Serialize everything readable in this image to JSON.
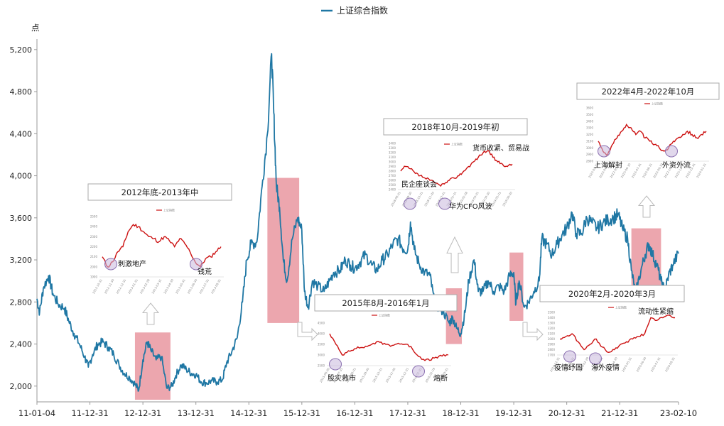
{
  "chart_data": {
    "type": "line",
    "legend": {
      "label": "上证综合指数",
      "color": "#1f77a4",
      "position": "top-center"
    },
    "ylabel": "点",
    "ylim": [
      1850,
      5300
    ],
    "yticks": [
      "2,000",
      "2,400",
      "2,800",
      "3,200",
      "3,600",
      "4,000",
      "4,400",
      "4,800",
      "5,200"
    ],
    "ytick_values": [
      2000,
      2400,
      2800,
      3200,
      3600,
      4000,
      4400,
      4800,
      5200
    ],
    "xticks": [
      "11-01-04",
      "11-12-31",
      "12-12-31",
      "13-12-31",
      "14-12-31",
      "15-12-31",
      "16-12-31",
      "17-12-31",
      "18-12-31",
      "19-12-31",
      "20-12-31",
      "21-12-31",
      "23-02-10"
    ],
    "xtick_years": [
      2011.0,
      2012.0,
      2013.0,
      2014.0,
      2015.0,
      2016.0,
      2017.0,
      2018.0,
      2019.0,
      2020.0,
      2021.0,
      2022.0,
      2023.11
    ],
    "xlim": [
      2011.0,
      2023.11
    ],
    "series": [
      {
        "name": "上证综合指数",
        "color": "#1f77a4",
        "points": [
          [
            2011.0,
            2830
          ],
          [
            2011.05,
            2700
          ],
          [
            2011.12,
            2930
          ],
          [
            2011.22,
            3050
          ],
          [
            2011.3,
            2880
          ],
          [
            2011.4,
            2780
          ],
          [
            2011.52,
            2740
          ],
          [
            2011.6,
            2620
          ],
          [
            2011.7,
            2500
          ],
          [
            2011.8,
            2400
          ],
          [
            2011.9,
            2280
          ],
          [
            2011.97,
            2180
          ],
          [
            2012.05,
            2300
          ],
          [
            2012.15,
            2400
          ],
          [
            2012.25,
            2420
          ],
          [
            2012.35,
            2370
          ],
          [
            2012.45,
            2300
          ],
          [
            2012.55,
            2200
          ],
          [
            2012.65,
            2120
          ],
          [
            2012.75,
            2080
          ],
          [
            2012.85,
            2020
          ],
          [
            2012.92,
            1960
          ],
          [
            2013.0,
            2250
          ],
          [
            2013.08,
            2420
          ],
          [
            2013.15,
            2340
          ],
          [
            2013.25,
            2250
          ],
          [
            2013.35,
            2280
          ],
          [
            2013.45,
            1980
          ],
          [
            2013.55,
            2000
          ],
          [
            2013.62,
            2100
          ],
          [
            2013.72,
            2200
          ],
          [
            2013.82,
            2160
          ],
          [
            2013.92,
            2120
          ],
          [
            2014.0,
            2110
          ],
          [
            2014.1,
            2040
          ],
          [
            2014.2,
            2030
          ],
          [
            2014.3,
            2050
          ],
          [
            2014.4,
            2040
          ],
          [
            2014.5,
            2060
          ],
          [
            2014.58,
            2220
          ],
          [
            2014.68,
            2330
          ],
          [
            2014.78,
            2460
          ],
          [
            2014.88,
            2800
          ],
          [
            2014.96,
            3200
          ],
          [
            2015.04,
            3350
          ],
          [
            2015.15,
            3370
          ],
          [
            2015.25,
            3900
          ],
          [
            2015.35,
            4400
          ],
          [
            2015.43,
            5160
          ],
          [
            2015.47,
            4600
          ],
          [
            2015.52,
            3900
          ],
          [
            2015.58,
            3700
          ],
          [
            2015.65,
            3200
          ],
          [
            2015.72,
            3000
          ],
          [
            2015.82,
            3400
          ],
          [
            2015.92,
            3600
          ],
          [
            2016.0,
            3480
          ],
          [
            2016.05,
            2900
          ],
          [
            2016.12,
            2750
          ],
          [
            2016.2,
            3000
          ],
          [
            2016.3,
            2950
          ],
          [
            2016.42,
            2900
          ],
          [
            2016.52,
            3000
          ],
          [
            2016.6,
            3080
          ],
          [
            2016.72,
            3100
          ],
          [
            2016.82,
            3200
          ],
          [
            2016.92,
            3150
          ],
          [
            2017.0,
            3120
          ],
          [
            2017.1,
            3180
          ],
          [
            2017.2,
            3250
          ],
          [
            2017.32,
            3150
          ],
          [
            2017.42,
            3100
          ],
          [
            2017.52,
            3200
          ],
          [
            2017.62,
            3250
          ],
          [
            2017.72,
            3350
          ],
          [
            2017.82,
            3400
          ],
          [
            2017.92,
            3300
          ],
          [
            2018.0,
            3300
          ],
          [
            2018.05,
            3560
          ],
          [
            2018.12,
            3300
          ],
          [
            2018.22,
            3150
          ],
          [
            2018.32,
            3080
          ],
          [
            2018.42,
            3050
          ],
          [
            2018.5,
            2800
          ],
          [
            2018.58,
            2750
          ],
          [
            2018.68,
            2700
          ],
          [
            2018.78,
            2600
          ],
          [
            2018.85,
            2650
          ],
          [
            2018.92,
            2550
          ],
          [
            2019.0,
            2500
          ],
          [
            2019.08,
            2700
          ],
          [
            2019.15,
            3000
          ],
          [
            2019.25,
            3200
          ],
          [
            2019.33,
            2900
          ],
          [
            2019.42,
            2900
          ],
          [
            2019.52,
            3000
          ],
          [
            2019.62,
            2900
          ],
          [
            2019.72,
            2950
          ],
          [
            2019.82,
            2900
          ],
          [
            2019.92,
            3050
          ],
          [
            2020.0,
            3080
          ],
          [
            2020.04,
            2780
          ],
          [
            2020.1,
            3000
          ],
          [
            2020.2,
            2750
          ],
          [
            2020.28,
            2800
          ],
          [
            2020.38,
            2900
          ],
          [
            2020.48,
            3000
          ],
          [
            2020.53,
            3400
          ],
          [
            2020.62,
            3350
          ],
          [
            2020.72,
            3250
          ],
          [
            2020.82,
            3350
          ],
          [
            2020.92,
            3450
          ],
          [
            2021.0,
            3500
          ],
          [
            2021.1,
            3650
          ],
          [
            2021.18,
            3450
          ],
          [
            2021.28,
            3450
          ],
          [
            2021.38,
            3600
          ],
          [
            2021.48,
            3550
          ],
          [
            2021.58,
            3500
          ],
          [
            2021.68,
            3550
          ],
          [
            2021.78,
            3580
          ],
          [
            2021.88,
            3600
          ],
          [
            2021.97,
            3630
          ],
          [
            2022.05,
            3500
          ],
          [
            2022.15,
            3400
          ],
          [
            2022.22,
            3100
          ],
          [
            2022.3,
            2880
          ],
          [
            2022.4,
            3100
          ],
          [
            2022.48,
            3250
          ],
          [
            2022.55,
            3350
          ],
          [
            2022.62,
            3250
          ],
          [
            2022.7,
            3150
          ],
          [
            2022.78,
            3000
          ],
          [
            2022.85,
            2900
          ],
          [
            2022.92,
            3050
          ],
          [
            2023.0,
            3150
          ],
          [
            2023.11,
            3260
          ]
        ]
      }
    ],
    "highlights": [
      {
        "x0": 2012.85,
        "x1": 2013.52,
        "y0": 1870,
        "y1": 2510
      },
      {
        "x0": 2015.35,
        "x1": 2015.95,
        "y0": 2600,
        "y1": 3980
      },
      {
        "x0": 2018.72,
        "x1": 2019.02,
        "y0": 2400,
        "y1": 2930
      },
      {
        "x0": 2019.92,
        "x1": 2020.18,
        "y0": 2620,
        "y1": 3270
      },
      {
        "x0": 2022.22,
        "x1": 2022.78,
        "y0": 2900,
        "y1": 3500
      }
    ],
    "annotations": [
      {
        "caption": "2012年底-2013年中",
        "legend": "上证指数",
        "values": [
          2100,
          2000,
          2050,
          2150,
          2200,
          2350,
          2420,
          2400,
          2350,
          2300,
          2280,
          2250,
          2300,
          2260,
          2200,
          2280,
          2230,
          2150,
          2050,
          2000,
          2080,
          2100,
          2150,
          2200
        ],
        "yticks": [
          "2500",
          "2400",
          "2300",
          "2200",
          "2100",
          "2000",
          "1900"
        ],
        "xticks": [
          "2012-10-31",
          "2012-11-30",
          "2012-12-31",
          "2013-01-31",
          "2013-02-28",
          "2013-03-31",
          "2013-04-30",
          "2013-05-31",
          "2013-06-30",
          "2013-07-31",
          "2013-08-31"
        ],
        "labels": [
          "刺激地产",
          "钱荒"
        ]
      },
      {
        "caption": "2015年8月-2016年1月",
        "legend": "上证指数",
        "values": [
          4000,
          3500,
          3000,
          3200,
          3300,
          3350,
          3400,
          3550,
          3600,
          3500,
          3450,
          3550,
          3500,
          3400,
          3000,
          2800,
          2750,
          2900,
          2950,
          3000
        ],
        "yticks": [
          "4500",
          "4000",
          "3500",
          "3000",
          "2500"
        ],
        "xticks": [
          "2015-06-30",
          "2015-07-31",
          "2015-08-31",
          "2015-09-30",
          "2015-10-31",
          "2015-11-30",
          "2015-12-31",
          "2016-01-31",
          "2016-02-29",
          "2016-03-31"
        ],
        "labels": [
          "股灾救市",
          "熔断"
        ]
      },
      {
        "caption": "2018年10月-2019年初",
        "legend": "上证指数",
        "values": [
          2800,
          2900,
          2850,
          2750,
          2700,
          2650,
          2600,
          2550,
          2500,
          2520,
          2600,
          2650,
          2700,
          2800,
          2900,
          3000,
          3100,
          3200,
          3250,
          3100,
          3000,
          2950,
          2900,
          2950
        ],
        "yticks": [
          "3400",
          "3300",
          "3200",
          "3100",
          "3000",
          "2900",
          "2800",
          "2700",
          "2600",
          "2500",
          "2400"
        ],
        "xticks": [
          "2018-08-31",
          "2018-09-30",
          "2018-10-31",
          "2018-11-30",
          "2018-12-31",
          "2019-01-31",
          "2019-02-28",
          "2019-03-31",
          "2019-04-30",
          "2019-05-31",
          "2019-06-30"
        ],
        "labels": [
          "民企座谈会",
          "华为CFO风波",
          "货币收紧、贸易战"
        ]
      },
      {
        "caption": "2020年2月-2020年3月",
        "legend": "上证指数",
        "values": [
          3000,
          3050,
          3100,
          2950,
          2800,
          2900,
          3000,
          2850,
          2750,
          2800,
          2900,
          2950,
          3000,
          3050,
          3100,
          3400,
          3350,
          3400,
          3450,
          3400
        ],
        "yticks": [
          "3500",
          "3400",
          "3300",
          "3200",
          "3100",
          "3000",
          "2900",
          "2800",
          "2700"
        ],
        "xticks": [
          "2019-12-31",
          "2020-01-31",
          "2020-02-29",
          "2020-03-31",
          "2020-04-30",
          "2020-05-31",
          "2020-06-30",
          "2020-07-31",
          "2020-08-31"
        ],
        "labels": [
          "疫情纾困",
          "海外疫情",
          "流动性紧缩"
        ]
      },
      {
        "caption": "2022年4月-2022年10月",
        "legend": "上证指数",
        "values": [
          3100,
          2950,
          2900,
          3050,
          3150,
          3250,
          3350,
          3300,
          3200,
          3250,
          3150,
          3100,
          3050,
          3000,
          2950,
          3000,
          3100,
          3150,
          3200,
          3250,
          3200,
          3150,
          3200,
          3250
        ],
        "yticks": [
          "3600",
          "3500",
          "3400",
          "3300",
          "3200",
          "3100",
          "3000",
          "2900",
          "2800"
        ],
        "xticks": [
          "2022-03-31",
          "2022-04-30",
          "2022-05-31",
          "2022-06-30",
          "2022-07-31",
          "2022-08-31",
          "2022-09-30",
          "2022-10-31",
          "2022-11-30",
          "2022-12-31",
          "2023-01-31"
        ],
        "labels": [
          "上海解封",
          "外资外流"
        ]
      }
    ]
  }
}
